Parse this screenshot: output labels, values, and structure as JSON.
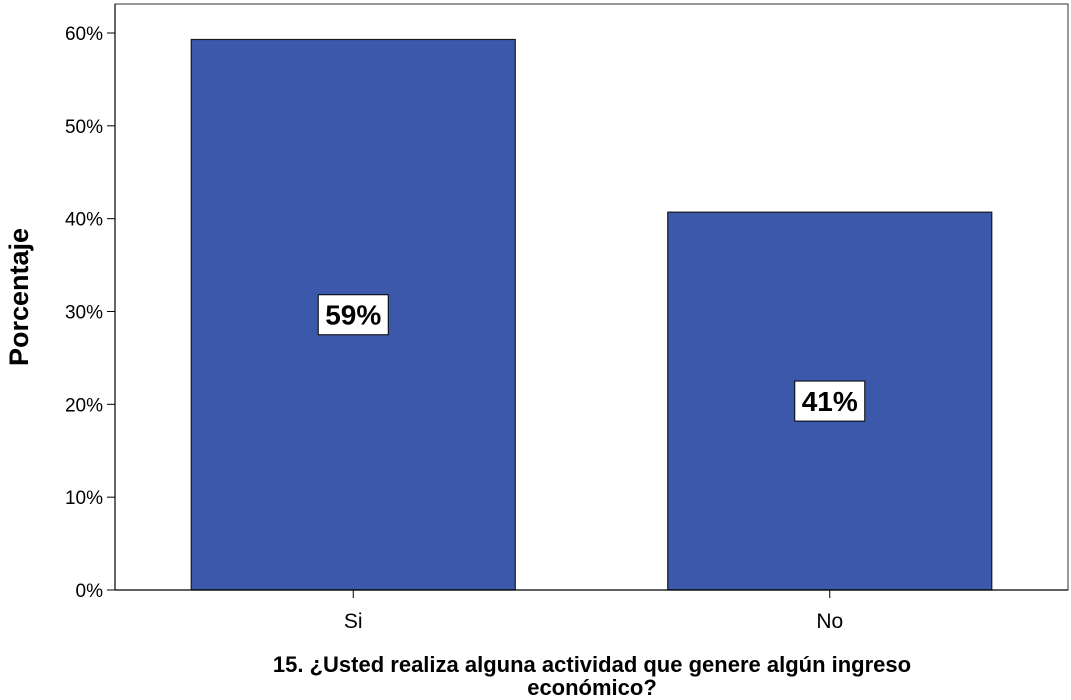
{
  "chart_data": {
    "type": "bar",
    "categories": [
      "Si",
      "No"
    ],
    "values": [
      59.3,
      40.7
    ],
    "data_labels": [
      "59%",
      "41%"
    ],
    "title": "",
    "xlabel_lines": [
      "15. ¿Usted realiza alguna actividad que genere algún ingreso",
      "económico?"
    ],
    "ylabel": "Porcentaje",
    "ylim": [
      0,
      60
    ],
    "yticks": [
      0,
      10,
      20,
      30,
      40,
      50,
      60
    ],
    "ytick_labels": [
      "0%",
      "10%",
      "20%",
      "30%",
      "40%",
      "50%",
      "60%"
    ],
    "grid": false,
    "legend": "none",
    "bar_color": "#3c58aa",
    "bar_edge_color": "#1a1a1a",
    "plot_background": "#ffffff"
  }
}
